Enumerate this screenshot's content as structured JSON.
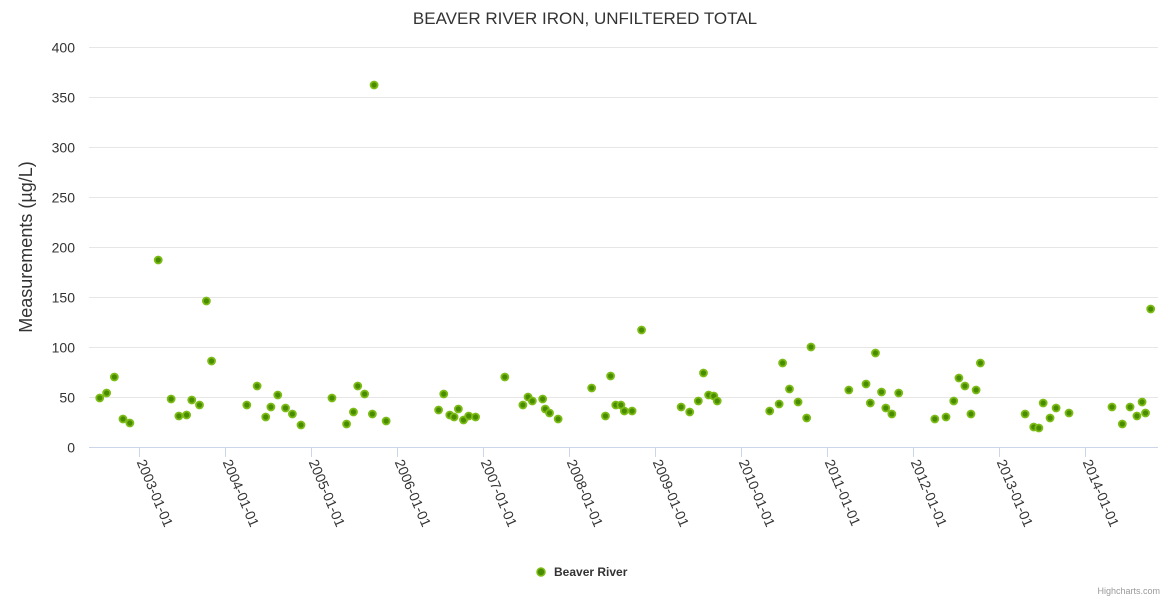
{
  "chart_data": {
    "type": "scatter",
    "title": "BEAVER RIVER IRON, UNFILTERED TOTAL",
    "xlabel": "",
    "ylabel": "Measurements (µg/L)",
    "x_unit": "decimal year",
    "xlim": [
      2002.415,
      2014.845
    ],
    "ylim": [
      0,
      400
    ],
    "yticks": [
      0,
      50,
      100,
      150,
      200,
      250,
      300,
      350,
      400
    ],
    "xticks": [
      {
        "value": 2003,
        "label": "2003-01-01"
      },
      {
        "value": 2004,
        "label": "2004-01-01"
      },
      {
        "value": 2005,
        "label": "2005-01-01"
      },
      {
        "value": 2006,
        "label": "2006-01-01"
      },
      {
        "value": 2007,
        "label": "2007-01-01"
      },
      {
        "value": 2008,
        "label": "2008-01-01"
      },
      {
        "value": 2009,
        "label": "2009-01-01"
      },
      {
        "value": 2010,
        "label": "2010-01-01"
      },
      {
        "value": 2011,
        "label": "2011-01-01"
      },
      {
        "value": 2012,
        "label": "2012-01-01"
      },
      {
        "value": 2013,
        "label": "2013-01-01"
      },
      {
        "value": 2014,
        "label": "2014-01-01"
      }
    ],
    "grid": true,
    "legend_position": "bottom-center",
    "series": [
      {
        "name": "Beaver River",
        "color": "#6bab00",
        "points": [
          [
            2002.54,
            49
          ],
          [
            2002.62,
            54
          ],
          [
            2002.71,
            70
          ],
          [
            2002.81,
            28
          ],
          [
            2002.89,
            24
          ],
          [
            2003.22,
            187
          ],
          [
            2003.37,
            48
          ],
          [
            2003.46,
            31
          ],
          [
            2003.55,
            32
          ],
          [
            2003.61,
            47
          ],
          [
            2003.7,
            42
          ],
          [
            2003.78,
            146
          ],
          [
            2003.84,
            86
          ],
          [
            2004.25,
            42
          ],
          [
            2004.37,
            61
          ],
          [
            2004.47,
            30
          ],
          [
            2004.53,
            40
          ],
          [
            2004.61,
            52
          ],
          [
            2004.7,
            39
          ],
          [
            2004.78,
            33
          ],
          [
            2004.88,
            22
          ],
          [
            2005.24,
            49
          ],
          [
            2005.41,
            23
          ],
          [
            2005.49,
            35
          ],
          [
            2005.54,
            61
          ],
          [
            2005.62,
            53
          ],
          [
            2005.71,
            33
          ],
          [
            2005.73,
            362
          ],
          [
            2005.87,
            26
          ],
          [
            2006.48,
            37
          ],
          [
            2006.54,
            53
          ],
          [
            2006.61,
            32
          ],
          [
            2006.66,
            30
          ],
          [
            2006.71,
            38
          ],
          [
            2006.77,
            27
          ],
          [
            2006.83,
            31
          ],
          [
            2006.91,
            30
          ],
          [
            2007.25,
            70
          ],
          [
            2007.46,
            42
          ],
          [
            2007.52,
            50
          ],
          [
            2007.57,
            46
          ],
          [
            2007.69,
            48
          ],
          [
            2007.72,
            38
          ],
          [
            2007.77,
            34
          ],
          [
            2007.87,
            28
          ],
          [
            2008.26,
            59
          ],
          [
            2008.42,
            31
          ],
          [
            2008.48,
            71
          ],
          [
            2008.54,
            42
          ],
          [
            2008.6,
            42
          ],
          [
            2008.64,
            36
          ],
          [
            2008.73,
            36
          ],
          [
            2008.84,
            117
          ],
          [
            2009.3,
            40
          ],
          [
            2009.4,
            35
          ],
          [
            2009.5,
            46
          ],
          [
            2009.56,
            74
          ],
          [
            2009.62,
            52
          ],
          [
            2009.68,
            51
          ],
          [
            2009.72,
            46
          ],
          [
            2010.33,
            36
          ],
          [
            2010.44,
            43
          ],
          [
            2010.48,
            84
          ],
          [
            2010.56,
            58
          ],
          [
            2010.66,
            45
          ],
          [
            2010.76,
            29
          ],
          [
            2010.81,
            100
          ],
          [
            2011.25,
            57
          ],
          [
            2011.45,
            63
          ],
          [
            2011.5,
            44
          ],
          [
            2011.56,
            94
          ],
          [
            2011.63,
            55
          ],
          [
            2011.68,
            39
          ],
          [
            2011.75,
            33
          ],
          [
            2011.83,
            54
          ],
          [
            2012.25,
            28
          ],
          [
            2012.38,
            30
          ],
          [
            2012.47,
            46
          ],
          [
            2012.53,
            69
          ],
          [
            2012.6,
            61
          ],
          [
            2012.67,
            33
          ],
          [
            2012.73,
            57
          ],
          [
            2012.78,
            84
          ],
          [
            2013.3,
            33
          ],
          [
            2013.4,
            20
          ],
          [
            2013.46,
            19
          ],
          [
            2013.51,
            44
          ],
          [
            2013.59,
            29
          ],
          [
            2013.66,
            39
          ],
          [
            2013.81,
            34
          ],
          [
            2014.31,
            40
          ],
          [
            2014.43,
            23
          ],
          [
            2014.52,
            40
          ],
          [
            2014.6,
            31
          ],
          [
            2014.66,
            45
          ],
          [
            2014.7,
            34
          ],
          [
            2014.76,
            138
          ]
        ]
      }
    ]
  },
  "credits": "Highcharts.com"
}
